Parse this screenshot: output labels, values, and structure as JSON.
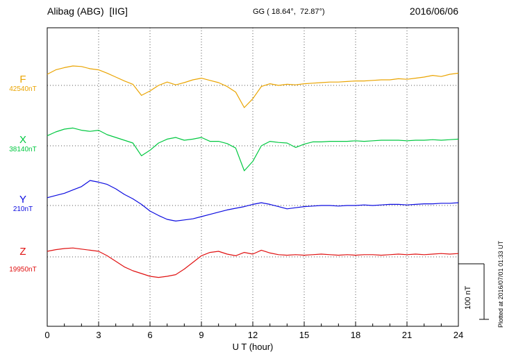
{
  "header": {
    "station": "Alibag (ABG)  [IIG]",
    "coordinates": "GG ( 18.64°,  72.87°)",
    "date": "2016/06/06"
  },
  "scale_bar": {
    "label": "100 nT"
  },
  "footer": {
    "plotted_at": "Plotted at 2016/07/01 01:33 UT"
  },
  "chart_data": {
    "type": "line",
    "title": "Alibag (ABG) [IIG] magnetogram 2016/06/06",
    "xlabel": "U T (hour)",
    "ylabel": "",
    "xlim": [
      0,
      24
    ],
    "x_ticks": [
      0,
      3,
      6,
      9,
      12,
      15,
      18,
      21,
      24
    ],
    "x_step_hours": 0.5,
    "grid": "dotted-vertical-every-3h",
    "legend": false,
    "scale_bar_nT": 100,
    "series": [
      {
        "name": "F",
        "color": "#eaa400",
        "baseline_nT": 42540,
        "baseline_label": "42540nT",
        "values": [
          42560,
          42568,
          42572,
          42575,
          42574,
          42570,
          42568,
          42562,
          42555,
          42548,
          42542,
          42522,
          42530,
          42540,
          42546,
          42541,
          42545,
          42550,
          42553,
          42549,
          42545,
          42538,
          42528,
          42500,
          42516,
          42538,
          42543,
          42540,
          42542,
          42541,
          42543,
          42544,
          42545,
          42546,
          42546,
          42547,
          42548,
          42548,
          42549,
          42550,
          42550,
          42552,
          42551,
          42553,
          42555,
          42558,
          42556,
          42560,
          42562
        ]
      },
      {
        "name": "X",
        "color": "#00c840",
        "baseline_nT": 38140,
        "baseline_label": "38140nT",
        "values": [
          38158,
          38165,
          38170,
          38172,
          38168,
          38166,
          38168,
          38160,
          38155,
          38150,
          38145,
          38122,
          38132,
          38145,
          38152,
          38155,
          38150,
          38152,
          38155,
          38148,
          38148,
          38144,
          38136,
          38095,
          38112,
          38140,
          38148,
          38146,
          38145,
          38137,
          38143,
          38147,
          38147,
          38148,
          38148,
          38148,
          38149,
          38148,
          38149,
          38150,
          38150,
          38150,
          38149,
          38150,
          38150,
          38151,
          38150,
          38151,
          38152
        ]
      },
      {
        "name": "Y",
        "color": "#0a0ae0",
        "baseline_nT": 210,
        "baseline_label": "210nT",
        "values": [
          224,
          228,
          232,
          238,
          244,
          255,
          252,
          248,
          240,
          230,
          222,
          212,
          200,
          192,
          185,
          182,
          184,
          186,
          190,
          194,
          198,
          202,
          205,
          208,
          212,
          215,
          212,
          208,
          204,
          206,
          208,
          209,
          210,
          210,
          209,
          210,
          210,
          211,
          210,
          211,
          212,
          212,
          211,
          212,
          213,
          213,
          214,
          214,
          215
        ]
      },
      {
        "name": "Z",
        "color": "#e01010",
        "baseline_nT": 19950,
        "baseline_label": "19950nT",
        "values": [
          19960,
          19963,
          19965,
          19966,
          19964,
          19962,
          19960,
          19952,
          19942,
          19932,
          19925,
          19920,
          19915,
          19913,
          19915,
          19918,
          19928,
          19940,
          19952,
          19958,
          19960,
          19955,
          19952,
          19958,
          19955,
          19962,
          19957,
          19954,
          19953,
          19954,
          19953,
          19954,
          19955,
          19954,
          19953,
          19954,
          19953,
          19954,
          19954,
          19953,
          19954,
          19955,
          19954,
          19955,
          19954,
          19955,
          19956,
          19955,
          19956
        ]
      }
    ]
  }
}
